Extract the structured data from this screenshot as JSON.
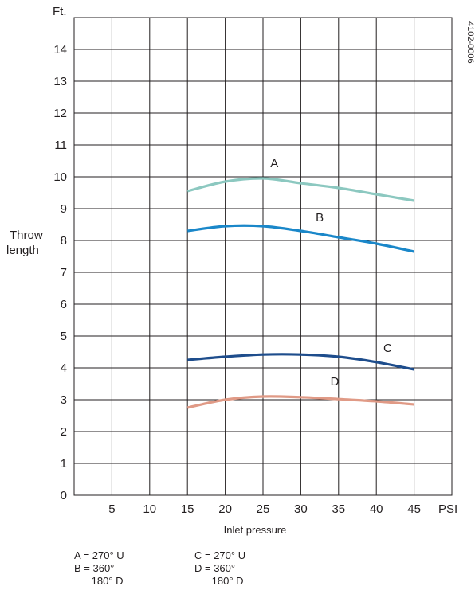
{
  "chart_data": {
    "type": "line",
    "y_unit": "Ft.",
    "x_unit": "PSI",
    "ylabel": [
      "Throw",
      "length"
    ],
    "xlabel": "Inlet pressure",
    "figure_code": "4102-0006",
    "xlim": [
      0,
      50
    ],
    "ylim": [
      0,
      15
    ],
    "x_ticks": [
      5,
      10,
      15,
      20,
      25,
      30,
      35,
      40,
      45
    ],
    "y_ticks": [
      0,
      1,
      2,
      3,
      4,
      5,
      6,
      7,
      8,
      9,
      10,
      11,
      12,
      13,
      14
    ],
    "grid": true,
    "series": [
      {
        "name": "A",
        "color": "#8cc8c0",
        "label_at": [
          26.5,
          10.3
        ],
        "points": [
          [
            15,
            9.55
          ],
          [
            20,
            9.85
          ],
          [
            25,
            9.95
          ],
          [
            30,
            9.8
          ],
          [
            35,
            9.65
          ],
          [
            40,
            9.45
          ],
          [
            45,
            9.25
          ]
        ]
      },
      {
        "name": "B",
        "color": "#1a87c9",
        "label_at": [
          32.5,
          8.6
        ],
        "points": [
          [
            15,
            8.3
          ],
          [
            20,
            8.45
          ],
          [
            25,
            8.45
          ],
          [
            30,
            8.3
          ],
          [
            35,
            8.1
          ],
          [
            40,
            7.9
          ],
          [
            45,
            7.65
          ]
        ]
      },
      {
        "name": "C",
        "color": "#1e4d8c",
        "label_at": [
          41.5,
          4.5
        ],
        "points": [
          [
            15,
            4.25
          ],
          [
            20,
            4.35
          ],
          [
            25,
            4.42
          ],
          [
            30,
            4.42
          ],
          [
            35,
            4.35
          ],
          [
            40,
            4.18
          ],
          [
            45,
            3.95
          ]
        ]
      },
      {
        "name": "D",
        "color": "#e09a86",
        "label_at": [
          34.5,
          3.45
        ],
        "points": [
          [
            15,
            2.75
          ],
          [
            20,
            3.0
          ],
          [
            25,
            3.1
          ],
          [
            30,
            3.08
          ],
          [
            35,
            3.02
          ],
          [
            40,
            2.95
          ],
          [
            45,
            2.85
          ]
        ]
      }
    ]
  },
  "legend": [
    {
      "col1": "A = 270° U",
      "col2": "C = 270° U"
    },
    {
      "col1": "B = 360°",
      "col2": "D = 360°"
    },
    {
      "col1": "      180° D",
      "col2": "      180° D"
    }
  ]
}
